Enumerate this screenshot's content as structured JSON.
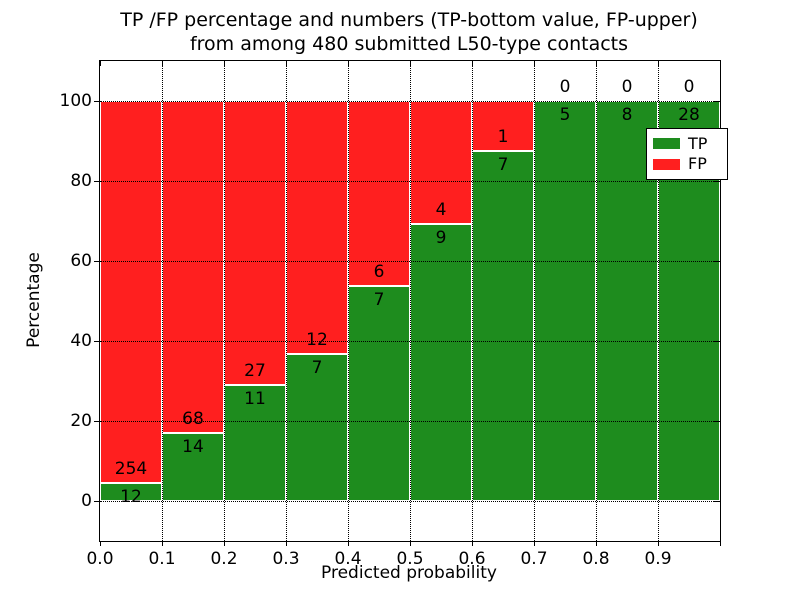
{
  "title": {
    "line1": "TP /FP percentage and numbers (TP-bottom value, FP-upper)",
    "line2": "from among 480 submitted L50-type contacts"
  },
  "axes": {
    "xlabel": "Predicted probability",
    "ylabel": "Percentage",
    "x_tick_labels": [
      "0.0",
      "0.1",
      "0.2",
      "0.3",
      "0.4",
      "0.5",
      "0.6",
      "0.7",
      "0.8",
      "0.9"
    ],
    "y_tick_labels": [
      "0",
      "20",
      "40",
      "60",
      "80",
      "100"
    ]
  },
  "legend": {
    "items": [
      {
        "label": "TP",
        "color": "#1e8c1e"
      },
      {
        "label": "FP",
        "color": "#ff1f1f"
      }
    ],
    "position": "upper right"
  },
  "chart_data": {
    "type": "bar",
    "subtype": "stacked-percentage",
    "title": "TP /FP percentage and numbers (TP-bottom value, FP-upper) from among 480 submitted L50-type contacts",
    "xlabel": "Predicted probability",
    "ylabel": "Percentage",
    "total_contacts": 480,
    "categories": [
      "0.0-0.1",
      "0.1-0.2",
      "0.2-0.3",
      "0.3-0.4",
      "0.4-0.5",
      "0.5-0.6",
      "0.6-0.7",
      "0.7-0.8",
      "0.8-0.9",
      "0.9-1.0"
    ],
    "series": [
      {
        "name": "TP",
        "color": "#1e8c1e",
        "counts": [
          12,
          14,
          11,
          7,
          7,
          9,
          7,
          5,
          8,
          28
        ]
      },
      {
        "name": "FP",
        "color": "#ff1f1f",
        "counts": [
          254,
          68,
          27,
          12,
          6,
          4,
          1,
          0,
          0,
          0
        ]
      }
    ],
    "tp_percent": [
      4.5,
      17.1,
      28.9,
      36.8,
      53.8,
      69.2,
      87.5,
      100.0,
      100.0,
      100.0
    ],
    "xlim": [
      0.0,
      1.0
    ],
    "ylim": [
      -10,
      110
    ],
    "x_ticks": [
      0.0,
      0.1,
      0.2,
      0.3,
      0.4,
      0.5,
      0.6,
      0.7,
      0.8,
      0.9
    ],
    "y_ticks": [
      0,
      20,
      40,
      60,
      80,
      100
    ],
    "grid": true,
    "legend_position": "upper right"
  }
}
